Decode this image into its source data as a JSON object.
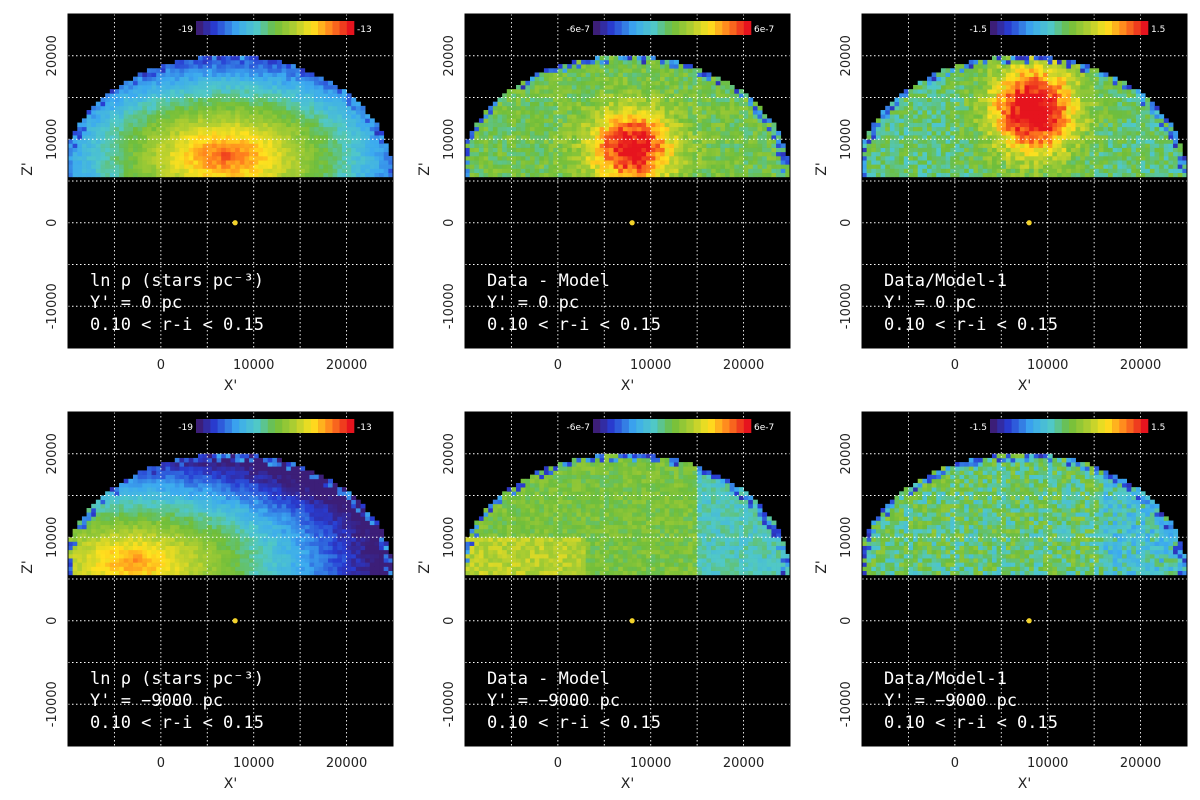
{
  "chart_data": [
    {
      "type": "heatmap",
      "panel": "density",
      "x_label": "X'",
      "y_label": "Z'",
      "xlim": [
        -10000,
        25000
      ],
      "ylim": [
        -15000,
        25000
      ],
      "x_ticks": [
        0,
        10000,
        20000
      ],
      "y_ticks": [
        -10000,
        0,
        10000,
        20000
      ],
      "colorbar": {
        "min": "-19",
        "max": "-13"
      },
      "annotation": [
        "ln ρ (stars pc⁻³)",
        "Y' = 0 pc",
        "0.10 < r-i < 0.15"
      ],
      "sun_position": [
        8000,
        0
      ]
    },
    {
      "type": "heatmap",
      "panel": "residual",
      "x_label": "X'",
      "y_label": "Z'",
      "xlim": [
        -10000,
        25000
      ],
      "ylim": [
        -15000,
        25000
      ],
      "x_ticks": [
        0,
        10000,
        20000
      ],
      "y_ticks": [
        -10000,
        0,
        10000,
        20000
      ],
      "colorbar": {
        "min": "-6e-7",
        "max": "6e-7"
      },
      "annotation": [
        "Data - Model",
        "Y' = 0 pc",
        "0.10 < r-i < 0.15"
      ],
      "sun_position": [
        8000,
        0
      ]
    },
    {
      "type": "heatmap",
      "panel": "ratio",
      "x_label": "X'",
      "y_label": "Z'",
      "xlim": [
        -10000,
        25000
      ],
      "ylim": [
        -15000,
        25000
      ],
      "x_ticks": [
        0,
        10000,
        20000
      ],
      "y_ticks": [
        -10000,
        0,
        10000,
        20000
      ],
      "colorbar": {
        "min": "-1.5",
        "max": "1.5"
      },
      "annotation": [
        "Data/Model-1",
        "Y' = 0 pc",
        "0.10 < r-i < 0.15"
      ],
      "sun_position": [
        8000,
        0
      ]
    },
    {
      "type": "heatmap",
      "panel": "density",
      "x_label": "X'",
      "y_label": "Z'",
      "xlim": [
        -10000,
        25000
      ],
      "ylim": [
        -15000,
        25000
      ],
      "x_ticks": [
        0,
        10000,
        20000
      ],
      "y_ticks": [
        -10000,
        0,
        10000,
        20000
      ],
      "colorbar": {
        "min": "-19",
        "max": "-13"
      },
      "annotation": [
        "ln ρ (stars pc⁻³)",
        "Y' = −9000 pc",
        "0.10 < r-i < 0.15"
      ],
      "sun_position": [
        8000,
        0
      ]
    },
    {
      "type": "heatmap",
      "panel": "residual",
      "x_label": "X'",
      "y_label": "Z'",
      "xlim": [
        -10000,
        25000
      ],
      "ylim": [
        -15000,
        25000
      ],
      "x_ticks": [
        0,
        10000,
        20000
      ],
      "y_ticks": [
        -10000,
        0,
        10000,
        20000
      ],
      "colorbar": {
        "min": "-6e-7",
        "max": "6e-7"
      },
      "annotation": [
        "Data - Model",
        "Y' = −9000 pc",
        "0.10 < r-i < 0.15"
      ],
      "sun_position": [
        8000,
        0
      ]
    },
    {
      "type": "heatmap",
      "panel": "ratio",
      "x_label": "X'",
      "y_label": "Z'",
      "xlim": [
        -10000,
        25000
      ],
      "ylim": [
        -15000,
        25000
      ],
      "x_ticks": [
        0,
        10000,
        20000
      ],
      "y_ticks": [
        -10000,
        0,
        10000,
        20000
      ],
      "colorbar": {
        "min": "-1.5",
        "max": "1.5"
      },
      "annotation": [
        "Data/Model-1",
        "Y' = −9000 pc",
        "0.10 < r-i < 0.15"
      ],
      "sun_position": [
        8000,
        0
      ]
    }
  ],
  "colors": {
    "background": "#000000",
    "grid": "#ffffff",
    "sun": "#f2d22a"
  }
}
